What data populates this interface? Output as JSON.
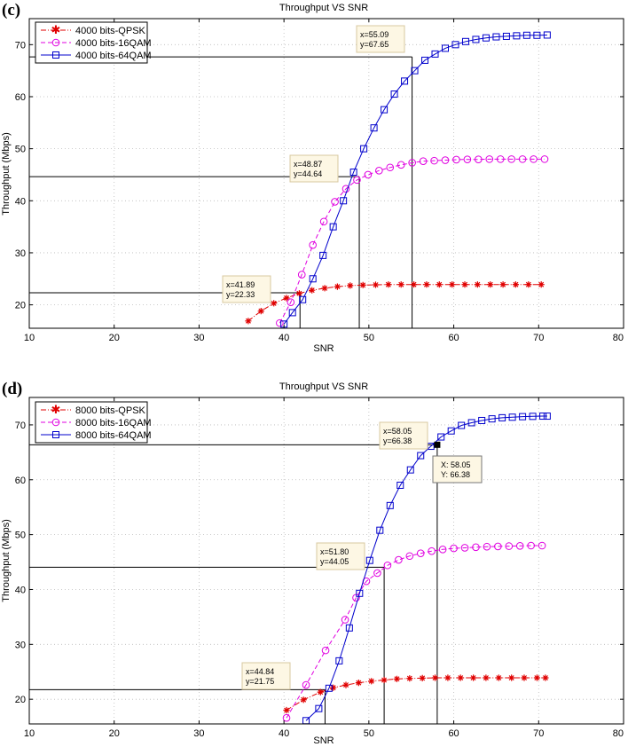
{
  "chart_data": [
    {
      "type": "line",
      "panel_label": "(c)",
      "title": "Throughput VS SNR",
      "xlabel": "SNR",
      "ylabel": "Throughput (Mbps)",
      "xlim": [
        10,
        80
      ],
      "ylim": [
        15.5,
        75
      ],
      "xticks": [
        10,
        20,
        30,
        40,
        50,
        60,
        70,
        80
      ],
      "yticks": [
        20,
        30,
        40,
        50,
        60,
        70
      ],
      "grid": true,
      "legend_position": "top-left",
      "series": [
        {
          "name": "4000 bits-QPSK",
          "color": "#e00000",
          "marker": "star",
          "line": "dash-dot",
          "x": [
            35.8,
            37.3,
            38.8,
            40.3,
            41.8,
            43.3,
            44.8,
            46.3,
            47.8,
            49.3,
            50.8,
            52.3,
            53.8,
            55.3,
            56.8,
            58.3,
            59.8,
            61.3,
            62.8,
            64.3,
            65.8,
            67.3,
            68.8,
            70.3
          ],
          "y": [
            16.9,
            18.8,
            20.3,
            21.3,
            22.2,
            22.8,
            23.2,
            23.5,
            23.7,
            23.8,
            23.85,
            23.9,
            23.9,
            23.9,
            23.9,
            23.9,
            23.9,
            23.9,
            23.9,
            23.9,
            23.9,
            23.9,
            23.9,
            23.9
          ]
        },
        {
          "name": "4000 bits-16QAM",
          "color": "#e000e0",
          "marker": "circle",
          "line": "dashed",
          "x": [
            39.5,
            40.8,
            42.1,
            43.4,
            44.7,
            46.0,
            47.3,
            48.6,
            49.9,
            51.2,
            52.5,
            53.8,
            55.1,
            56.4,
            57.7,
            59.0,
            60.3,
            61.6,
            62.9,
            64.2,
            65.5,
            66.8,
            68.1,
            69.4,
            70.7
          ],
          "y": [
            16.5,
            20.5,
            25.8,
            31.5,
            36.0,
            39.8,
            42.3,
            44.0,
            45.0,
            45.8,
            46.4,
            46.9,
            47.3,
            47.6,
            47.7,
            47.8,
            47.9,
            47.95,
            47.95,
            48.0,
            48.0,
            48.0,
            48.0,
            48.0,
            48.0
          ]
        },
        {
          "name": "4000 bits-64QAM",
          "color": "#0000cc",
          "marker": "square",
          "line": "solid",
          "x": [
            40.0,
            41.0,
            42.2,
            43.4,
            44.6,
            45.8,
            47.0,
            48.2,
            49.4,
            50.6,
            51.8,
            53.0,
            54.2,
            55.4,
            56.6,
            57.8,
            59.0,
            60.2,
            61.4,
            62.6,
            63.8,
            65.0,
            66.2,
            67.4,
            68.6,
            69.8,
            71.0
          ],
          "y": [
            16.3,
            18.5,
            21.0,
            25.0,
            29.5,
            35.0,
            40.0,
            45.5,
            50.0,
            54.0,
            57.5,
            60.5,
            63.0,
            65.0,
            67.0,
            68.2,
            69.3,
            70.0,
            70.6,
            71.0,
            71.3,
            71.5,
            71.6,
            71.7,
            71.8,
            71.8,
            71.85
          ]
        }
      ],
      "annotations": [
        {
          "x_text": "x=41.89",
          "y_text": "y=22.33",
          "x": 41.89,
          "y": 22.33
        },
        {
          "x_text": "x=48.87",
          "y_text": "y=44.64",
          "x": 48.87,
          "y": 44.64
        },
        {
          "x_text": "x=55.09",
          "y_text": "y=67.65",
          "x": 55.09,
          "y": 67.65
        }
      ]
    },
    {
      "type": "line",
      "panel_label": "(d)",
      "title": "Throughput VS SNR",
      "xlabel": "SNR",
      "ylabel": "Throughput (Mbps)",
      "xlim": [
        10,
        80
      ],
      "ylim": [
        15.5,
        75
      ],
      "xticks": [
        10,
        20,
        30,
        40,
        50,
        60,
        70,
        80
      ],
      "yticks": [
        20,
        30,
        40,
        50,
        60,
        70
      ],
      "grid": true,
      "legend_position": "top-left",
      "series": [
        {
          "name": "8000 bits-QPSK",
          "color": "#e00000",
          "marker": "star",
          "line": "dash-dot",
          "x": [
            40.3,
            42.3,
            44.3,
            45.8,
            47.3,
            48.8,
            50.3,
            51.8,
            53.3,
            54.8,
            56.3,
            57.8,
            59.3,
            60.8,
            62.3,
            63.8,
            65.3,
            66.8,
            68.3,
            69.8,
            70.8
          ],
          "y": [
            18.0,
            19.9,
            21.3,
            22.1,
            22.6,
            23.0,
            23.3,
            23.5,
            23.7,
            23.8,
            23.85,
            23.9,
            23.9,
            23.9,
            23.9,
            23.9,
            23.9,
            23.9,
            23.9,
            23.9,
            23.9
          ]
        },
        {
          "name": "8000 bits-16QAM",
          "color": "#e000e0",
          "marker": "circle",
          "line": "dashed",
          "x": [
            40.3,
            42.6,
            44.9,
            47.2,
            48.5,
            49.7,
            51.0,
            52.2,
            53.5,
            54.8,
            56.1,
            57.4,
            58.7,
            60.0,
            61.3,
            62.6,
            63.9,
            65.2,
            66.5,
            67.8,
            69.1,
            70.4
          ],
          "y": [
            16.6,
            22.6,
            28.9,
            34.5,
            38.5,
            41.5,
            43.0,
            44.4,
            45.4,
            46.1,
            46.6,
            47.0,
            47.3,
            47.5,
            47.6,
            47.7,
            47.8,
            47.85,
            47.9,
            47.95,
            48.0,
            48.0
          ]
        },
        {
          "name": "8000 bits-64QAM",
          "color": "#0000cc",
          "marker": "square",
          "line": "solid",
          "x": [
            42.6,
            44.1,
            45.3,
            46.5,
            47.7,
            48.9,
            50.1,
            51.3,
            52.5,
            53.7,
            54.9,
            56.1,
            57.3,
            58.5,
            59.7,
            60.9,
            62.1,
            63.3,
            64.5,
            65.7,
            66.9,
            68.1,
            69.3,
            70.5,
            71.0
          ],
          "y": [
            16.1,
            18.3,
            22.0,
            27.0,
            33.0,
            39.3,
            45.3,
            50.8,
            55.3,
            59.0,
            61.8,
            64.4,
            66.1,
            67.8,
            68.9,
            69.9,
            70.4,
            70.8,
            71.1,
            71.3,
            71.4,
            71.5,
            71.55,
            71.6,
            71.6
          ]
        }
      ],
      "annotations": [
        {
          "x_text": "x=44.84",
          "y_text": "y=21.75",
          "x": 44.84,
          "y": 21.75
        },
        {
          "x_text": "x=51.80",
          "y_text": "y=44.05",
          "x": 51.8,
          "y": 44.05
        },
        {
          "x_text": "x=58.05",
          "y_text": "y=66.38",
          "x": 58.05,
          "y": 66.38
        }
      ],
      "datatip": {
        "x_text": "X: 58.05",
        "y_text": "Y: 66.38",
        "x": 58.05,
        "y": 66.38
      }
    }
  ]
}
